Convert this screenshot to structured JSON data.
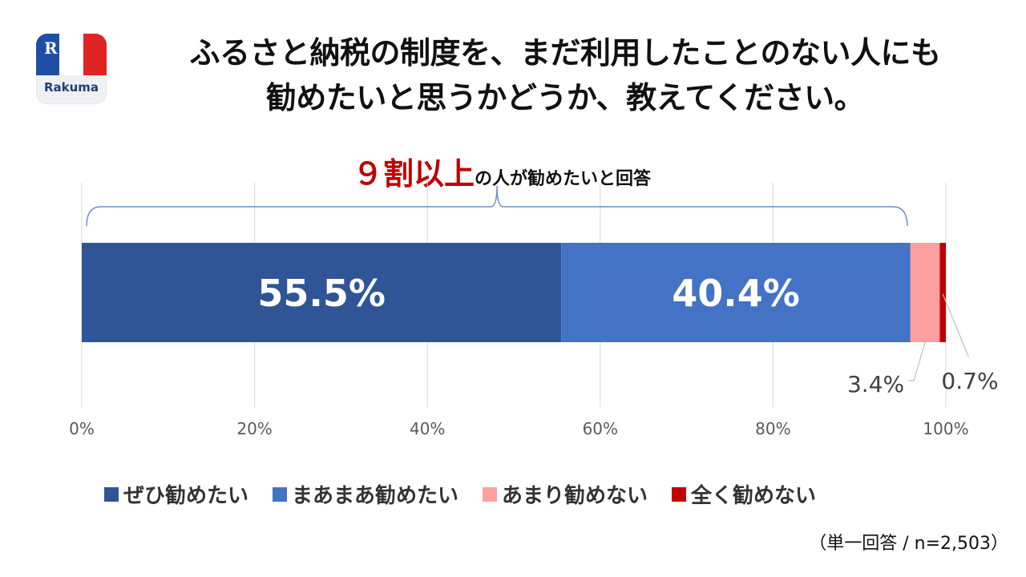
{
  "logo": {
    "mark": "R",
    "brand": "Rakuma",
    "colors": [
      "#1f4ea8",
      "#ffffff",
      "#e02424"
    ]
  },
  "title_lines": [
    "ふるさと納税の制度を、まだ利用したことのない人にも",
    "勧めたいと思うかどうか、教えてください。"
  ],
  "callout": {
    "highlight": "９割以上",
    "text": "の人が勧めたいと回答"
  },
  "note": "（単一回答 / n=2,503）",
  "chart_data": {
    "type": "bar",
    "orientation": "horizontal-stacked",
    "xlim": [
      0,
      100
    ],
    "grid": true,
    "x_ticks": [
      "0%",
      "20%",
      "40%",
      "60%",
      "80%",
      "100%"
    ],
    "series": [
      {
        "name": "ぜひ勧めたい",
        "value": 55.5,
        "label": "55.5%",
        "color": "#2f5597"
      },
      {
        "name": "まあまあ勧めたい",
        "value": 40.4,
        "label": "40.4%",
        "color": "#4472c4"
      },
      {
        "name": "あまり勧めない",
        "value": 3.4,
        "label": "3.4%",
        "color": "#ff9f9f"
      },
      {
        "name": "全く勧めない",
        "value": 0.7,
        "label": "0.7%",
        "color": "#c00000"
      }
    ],
    "legend_position": "bottom"
  }
}
